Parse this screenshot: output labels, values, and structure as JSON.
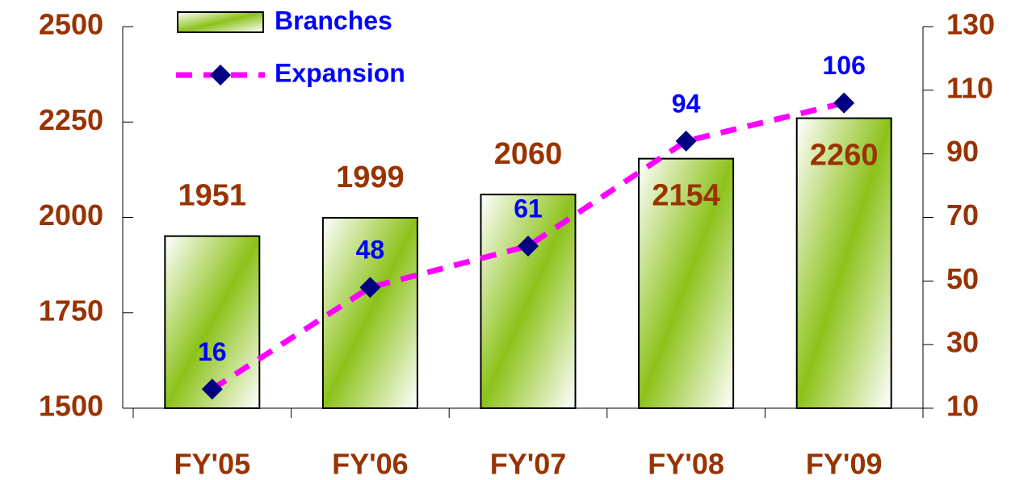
{
  "chart_data": {
    "type": "bar-line",
    "categories": [
      "FY'05",
      "FY'06",
      "FY'07",
      "FY'08",
      "FY'09"
    ],
    "series": [
      {
        "name": "Branches",
        "type": "bar",
        "color": "#8cc21a",
        "values": [
          1951,
          1999,
          2060,
          2154,
          2260
        ]
      },
      {
        "name": "Expansion",
        "type": "line",
        "axis": "y2",
        "color": "#ff00ff",
        "marker_color": "#000080",
        "values": [
          16,
          48,
          61,
          94,
          106
        ]
      }
    ],
    "ylim": [
      1500,
      2500
    ],
    "yticks": [
      1500,
      1750,
      2000,
      2250,
      2500
    ],
    "y2lim": [
      10,
      130
    ],
    "y2ticks": [
      10,
      30,
      50,
      70,
      90,
      110,
      130
    ],
    "legend": "top"
  }
}
